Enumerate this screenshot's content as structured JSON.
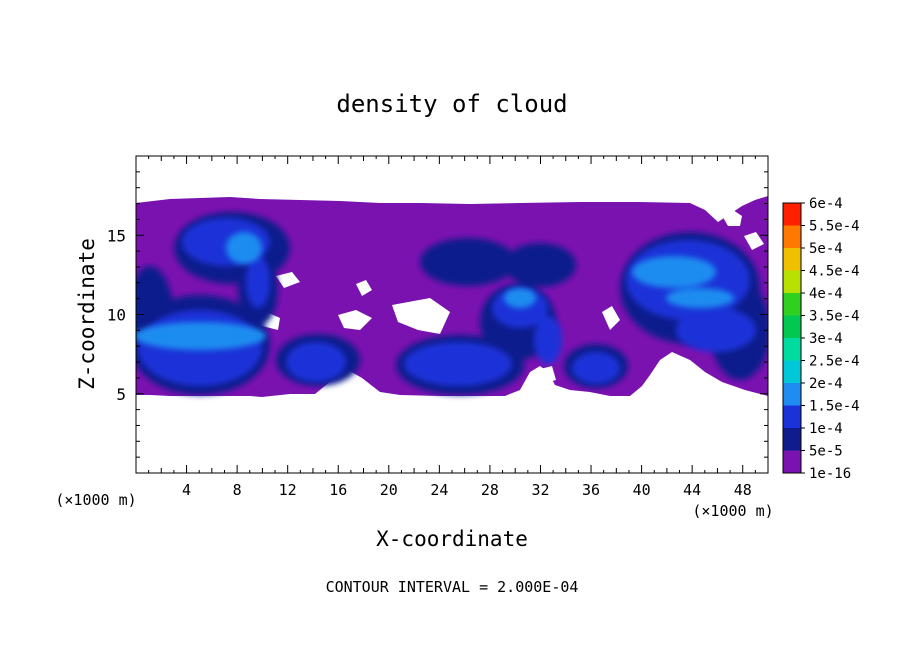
{
  "chart_data": {
    "type": "heatmap",
    "title": "density of cloud",
    "xlabel": "X-coordinate",
    "ylabel": "Z-coordinate",
    "x_unit_left": "(×1000 m)",
    "x_unit_right": "(×1000 m)",
    "xlim": [
      0,
      50
    ],
    "ylim": [
      0,
      20
    ],
    "x_ticks": [
      {
        "value": 4,
        "label": "4"
      },
      {
        "value": 8,
        "label": "8"
      },
      {
        "value": 12,
        "label": "12"
      },
      {
        "value": 16,
        "label": "16"
      },
      {
        "value": 20,
        "label": "20"
      },
      {
        "value": 24,
        "label": "24"
      },
      {
        "value": 28,
        "label": "28"
      },
      {
        "value": 32,
        "label": "32"
      },
      {
        "value": 36,
        "label": "36"
      },
      {
        "value": 40,
        "label": "40"
      },
      {
        "value": 44,
        "label": "44"
      },
      {
        "value": 48,
        "label": "48"
      }
    ],
    "y_ticks": [
      {
        "value": 5,
        "label": "5"
      },
      {
        "value": 10,
        "label": "10"
      },
      {
        "value": 15,
        "label": "15"
      }
    ],
    "footer": "CONTOUR INTERVAL = 2.000E-04",
    "colorbar": {
      "levels": [
        {
          "label": "1e-16",
          "color": "#7a12b0"
        },
        {
          "label": "5e-5",
          "color": "#101c8c"
        },
        {
          "label": "1e-4",
          "color": "#1a32d8"
        },
        {
          "label": "1.5e-4",
          "color": "#1e8cf0"
        },
        {
          "label": "2e-4",
          "color": "#00c8d8"
        },
        {
          "label": "2.5e-4",
          "color": "#00dca0"
        },
        {
          "label": "3e-4",
          "color": "#00c850"
        },
        {
          "label": "3.5e-4",
          "color": "#30d020"
        },
        {
          "label": "4e-4",
          "color": "#b8e000"
        },
        {
          "label": "4.5e-4",
          "color": "#f0c000"
        },
        {
          "label": "5e-4",
          "color": "#ff7800"
        },
        {
          "label": "5.5e-4",
          "color": "#ff2000"
        },
        {
          "label": "6e-4",
          "color": "#f08080"
        }
      ]
    }
  }
}
